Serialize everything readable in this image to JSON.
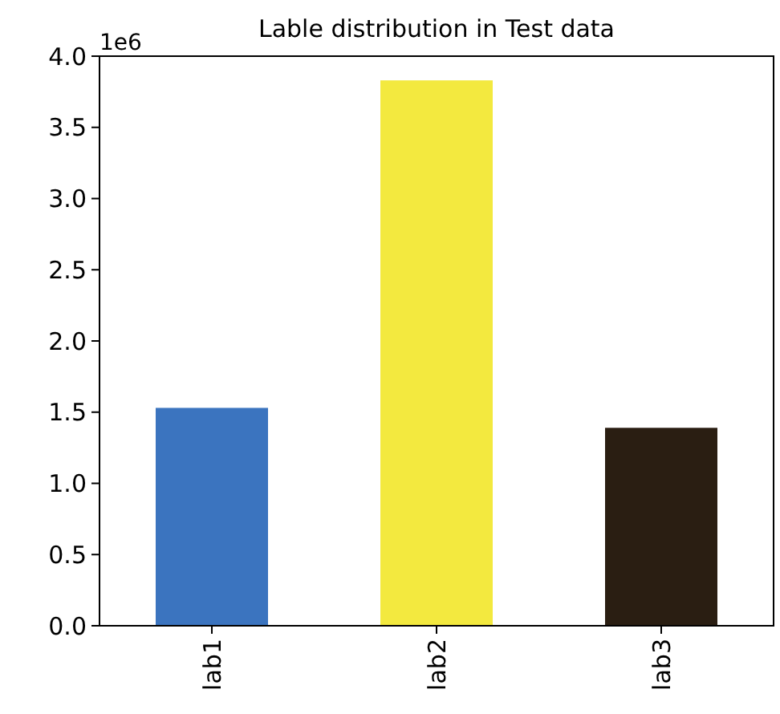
{
  "chart_data": {
    "type": "bar",
    "title": "Lable distribution in Test data",
    "categories": [
      "lab1",
      "lab2",
      "lab3"
    ],
    "values": [
      1.53,
      3.83,
      1.39
    ],
    "colors": [
      "#3b74bf",
      "#f3e93f",
      "#2a1e12"
    ],
    "ylim": [
      0,
      4
    ],
    "yticks": [
      {
        "value": 0,
        "label": "0.0"
      },
      {
        "value": 0.5,
        "label": "0.5"
      },
      {
        "value": 1,
        "label": "1.0"
      },
      {
        "value": 1.5,
        "label": "1.5"
      },
      {
        "value": 2,
        "label": "2.0"
      },
      {
        "value": 2.5,
        "label": "2.5"
      },
      {
        "value": 3,
        "label": "3.0"
      },
      {
        "value": 3.5,
        "label": "3.5"
      },
      {
        "value": 4,
        "label": "4.0"
      }
    ],
    "annotations": [
      "1e6"
    ]
  }
}
